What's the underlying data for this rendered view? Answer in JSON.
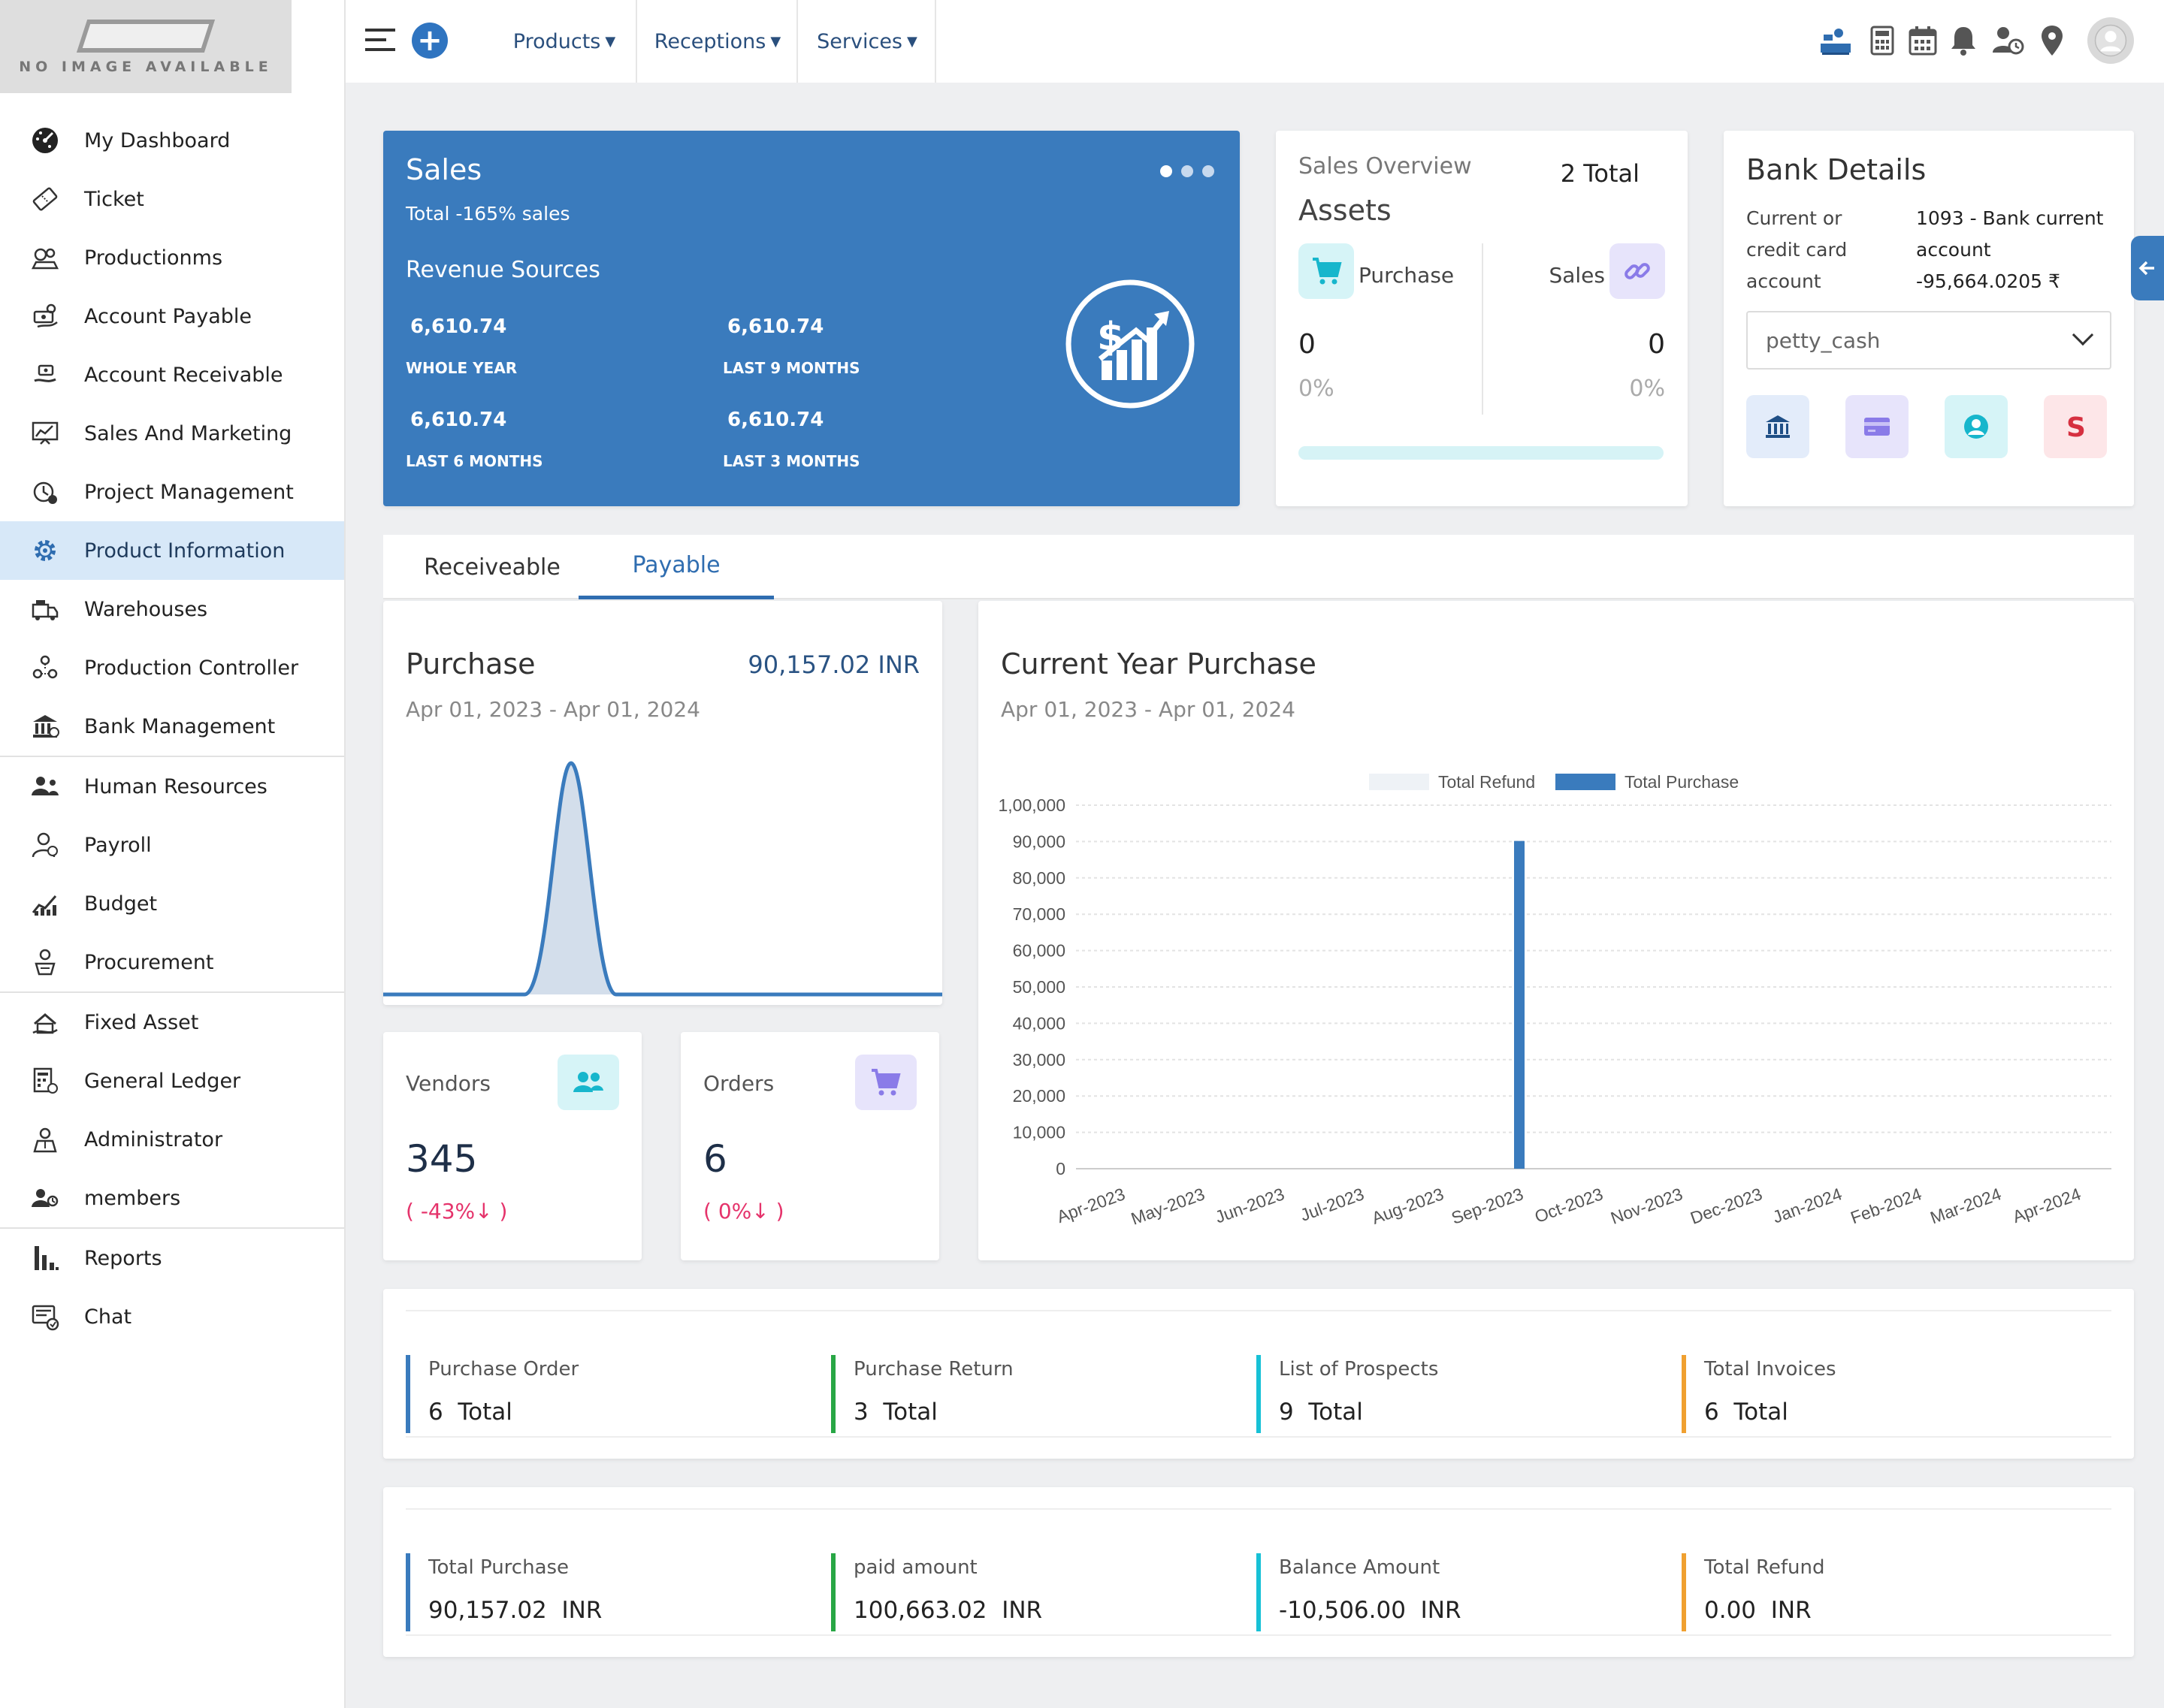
{
  "logo": {
    "text": "NO IMAGE AVAILABLE"
  },
  "sidebar": {
    "items": [
      {
        "label": "My Dashboard",
        "icon": "dashboard-icon"
      },
      {
        "label": "Ticket",
        "icon": "ticket-icon"
      },
      {
        "label": "Productionms",
        "icon": "production-icon"
      },
      {
        "label": "Account Payable",
        "icon": "account-payable-icon"
      },
      {
        "label": "Account Receivable",
        "icon": "account-receivable-icon"
      },
      {
        "label": "Sales And Marketing",
        "icon": "sales-marketing-icon"
      },
      {
        "label": "Project Management",
        "icon": "project-management-icon"
      },
      {
        "label": "Product Information",
        "icon": "gear-icon"
      },
      {
        "label": "Warehouses",
        "icon": "warehouse-icon"
      },
      {
        "label": "Production Controller",
        "icon": "production-controller-icon"
      },
      {
        "label": "Bank Management",
        "icon": "bank-icon"
      },
      {
        "label": "Human Resources",
        "icon": "human-resources-icon"
      },
      {
        "label": "Payroll",
        "icon": "payroll-icon"
      },
      {
        "label": "Budget",
        "icon": "budget-icon"
      },
      {
        "label": "Procurement",
        "icon": "procurement-icon"
      },
      {
        "label": "Fixed Asset",
        "icon": "fixed-asset-icon"
      },
      {
        "label": "General Ledger",
        "icon": "ledger-icon"
      },
      {
        "label": "Administrator",
        "icon": "administrator-icon"
      },
      {
        "label": "members",
        "icon": "members-icon"
      },
      {
        "label": "Reports",
        "icon": "reports-icon"
      },
      {
        "label": "Chat",
        "icon": "chat-icon"
      }
    ],
    "active_index": 7
  },
  "topbar": {
    "menus": [
      {
        "label": "Products"
      },
      {
        "label": "Receptions"
      },
      {
        "label": "Services"
      }
    ],
    "right_icons": [
      "cashier-icon",
      "calculator-icon",
      "calendar-icon",
      "bell-icon",
      "user-clock-icon",
      "location-pin-icon",
      "avatar-icon"
    ]
  },
  "sales": {
    "title": "Sales",
    "total": "Total -165% sales",
    "revenue_title": "Revenue Sources",
    "stats": [
      {
        "value": "6,610.74",
        "label": "WHOLE YEAR"
      },
      {
        "value": "6,610.74",
        "label": "LAST 9 MONTHS"
      },
      {
        "value": "6,610.74",
        "label": "LAST 6 MONTHS"
      },
      {
        "value": "6,610.74",
        "label": "LAST 3 MONTHS"
      }
    ]
  },
  "overview": {
    "label": "Sales Overview",
    "total": "2 Total",
    "assets": "Assets",
    "purchase_label": "Purchase",
    "sales_label": "Sales",
    "purchase_value": "0",
    "sales_value": "0",
    "purchase_pct": "0%",
    "sales_pct": "0%"
  },
  "bank": {
    "title": "Bank Details",
    "type_label": "Current or credit card account",
    "account_name": "1093 - Bank current account",
    "balance": "-95,664.0205 ₹",
    "selected": "petty_cash",
    "colors": {
      "bank": "#e3ecfa",
      "card": "#e7e4fb",
      "user": "#d6f4f7",
      "s": "#fde6e8"
    }
  },
  "tabs": [
    {
      "label": "Receiveable"
    },
    {
      "label": "Payable"
    }
  ],
  "purchase": {
    "title": "Purchase",
    "amount": "90,157.02 INR",
    "date_range": "Apr 01, 2023 - Apr 01, 2024"
  },
  "vendors": {
    "label": "Vendors",
    "value": "345",
    "change": "( -43%↓ )"
  },
  "orders": {
    "label": "Orders",
    "value": "6",
    "change": "( 0%↓ )"
  },
  "current_year": {
    "title": "Current Year Purchase",
    "date_range": "Apr 01, 2023 - Apr 01, 2024"
  },
  "chart_data": {
    "type": "bar",
    "categories": [
      "Apr-2023",
      "May-2023",
      "Jun-2023",
      "Jul-2023",
      "Aug-2023",
      "Sep-2023",
      "Oct-2023",
      "Nov-2023",
      "Dec-2023",
      "Jan-2024",
      "Feb-2024",
      "Mar-2024",
      "Apr-2024"
    ],
    "series": [
      {
        "name": "Total Refund",
        "values": [
          0,
          0,
          0,
          0,
          0,
          0,
          0,
          0,
          0,
          0,
          0,
          0,
          0
        ],
        "color": "#eef2f6"
      },
      {
        "name": "Total Purchase",
        "values": [
          0,
          0,
          0,
          0,
          0,
          90157.02,
          0,
          0,
          0,
          0,
          0,
          0,
          0
        ],
        "color": "#3a7bbd"
      }
    ],
    "yticks": [
      "0",
      "10,000",
      "20,000",
      "30,000",
      "40,000",
      "50,000",
      "60,000",
      "70,000",
      "80,000",
      "90,000",
      "1,00,000"
    ],
    "ylim": [
      0,
      100000
    ],
    "legend": "top-center",
    "grid": true
  },
  "summary1": [
    {
      "label": "Purchase Order",
      "value": "6  Total",
      "color": "#3a7bbd"
    },
    {
      "label": "Purchase Return",
      "value": "3  Total",
      "color": "#28a745"
    },
    {
      "label": "List of Prospects",
      "value": "9  Total",
      "color": "#17c1d6"
    },
    {
      "label": "Total Invoices",
      "value": "6  Total",
      "color": "#f0a030"
    }
  ],
  "summary2": [
    {
      "label": "Total Purchase",
      "value": "90,157.02  INR",
      "color": "#3a7bbd"
    },
    {
      "label": "paid amount",
      "value": "100,663.02  INR",
      "color": "#28a745"
    },
    {
      "label": "Balance Amount",
      "value": "-10,506.00  INR",
      "color": "#17c1d6"
    },
    {
      "label": "Total Refund",
      "value": "0.00  INR",
      "color": "#f0a030"
    }
  ]
}
